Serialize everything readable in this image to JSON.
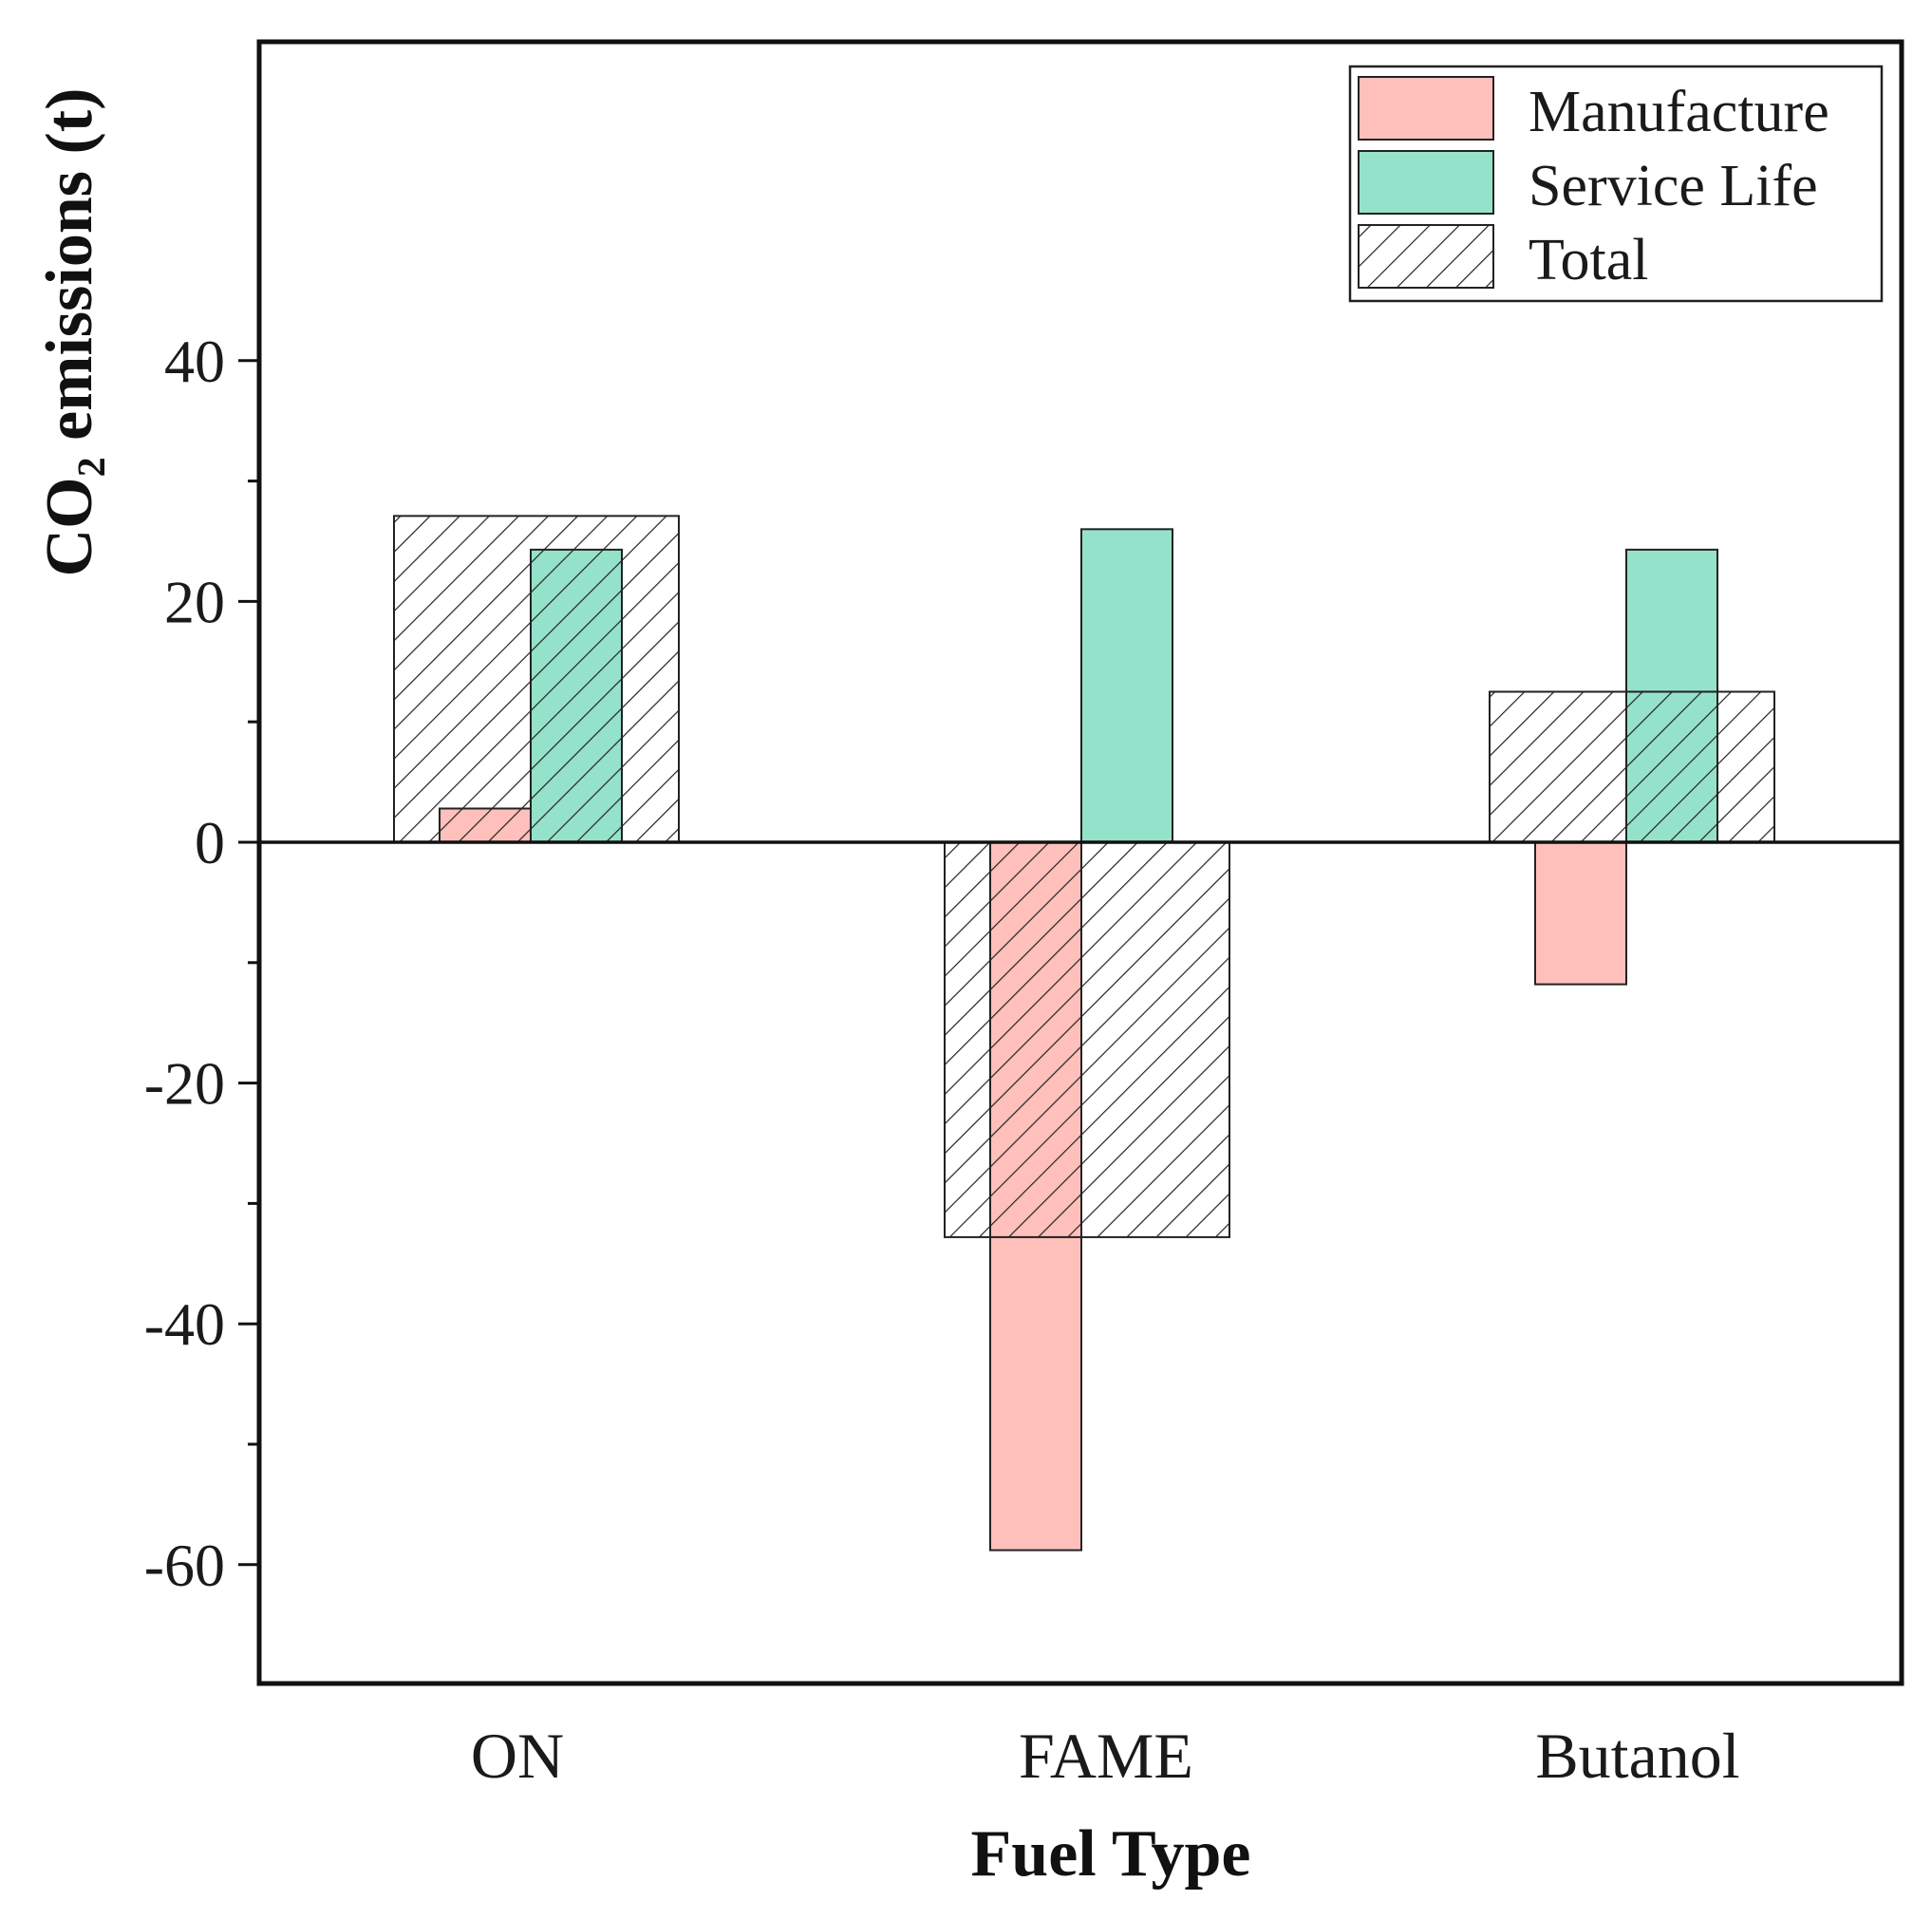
{
  "chart_data": {
    "type": "bar",
    "title": "",
    "xlabel": "Fuel Type",
    "ylabel": "CO₂  emissions (t)",
    "categories": [
      "ON",
      "FAME",
      "Butanol"
    ],
    "ylim": [
      -70,
      66
    ],
    "yticks": [
      -60,
      -40,
      -20,
      0,
      20,
      40
    ],
    "yticks_minor": [
      -50,
      -30,
      -10,
      10,
      30
    ],
    "grid": false,
    "legend_position": "top-right",
    "series": [
      {
        "name": "Manufacture",
        "values": [
          2.8,
          -58.8,
          -11.8
        ],
        "color": "#ffc0bb",
        "pattern": "solid"
      },
      {
        "name": "Service Life",
        "values": [
          24.3,
          26.0,
          24.3
        ],
        "color": "#95e2ca",
        "pattern": "solid"
      },
      {
        "name": "Total",
        "values": [
          27.1,
          -32.8,
          12.5
        ],
        "color": "none",
        "pattern": "hatch"
      }
    ]
  }
}
